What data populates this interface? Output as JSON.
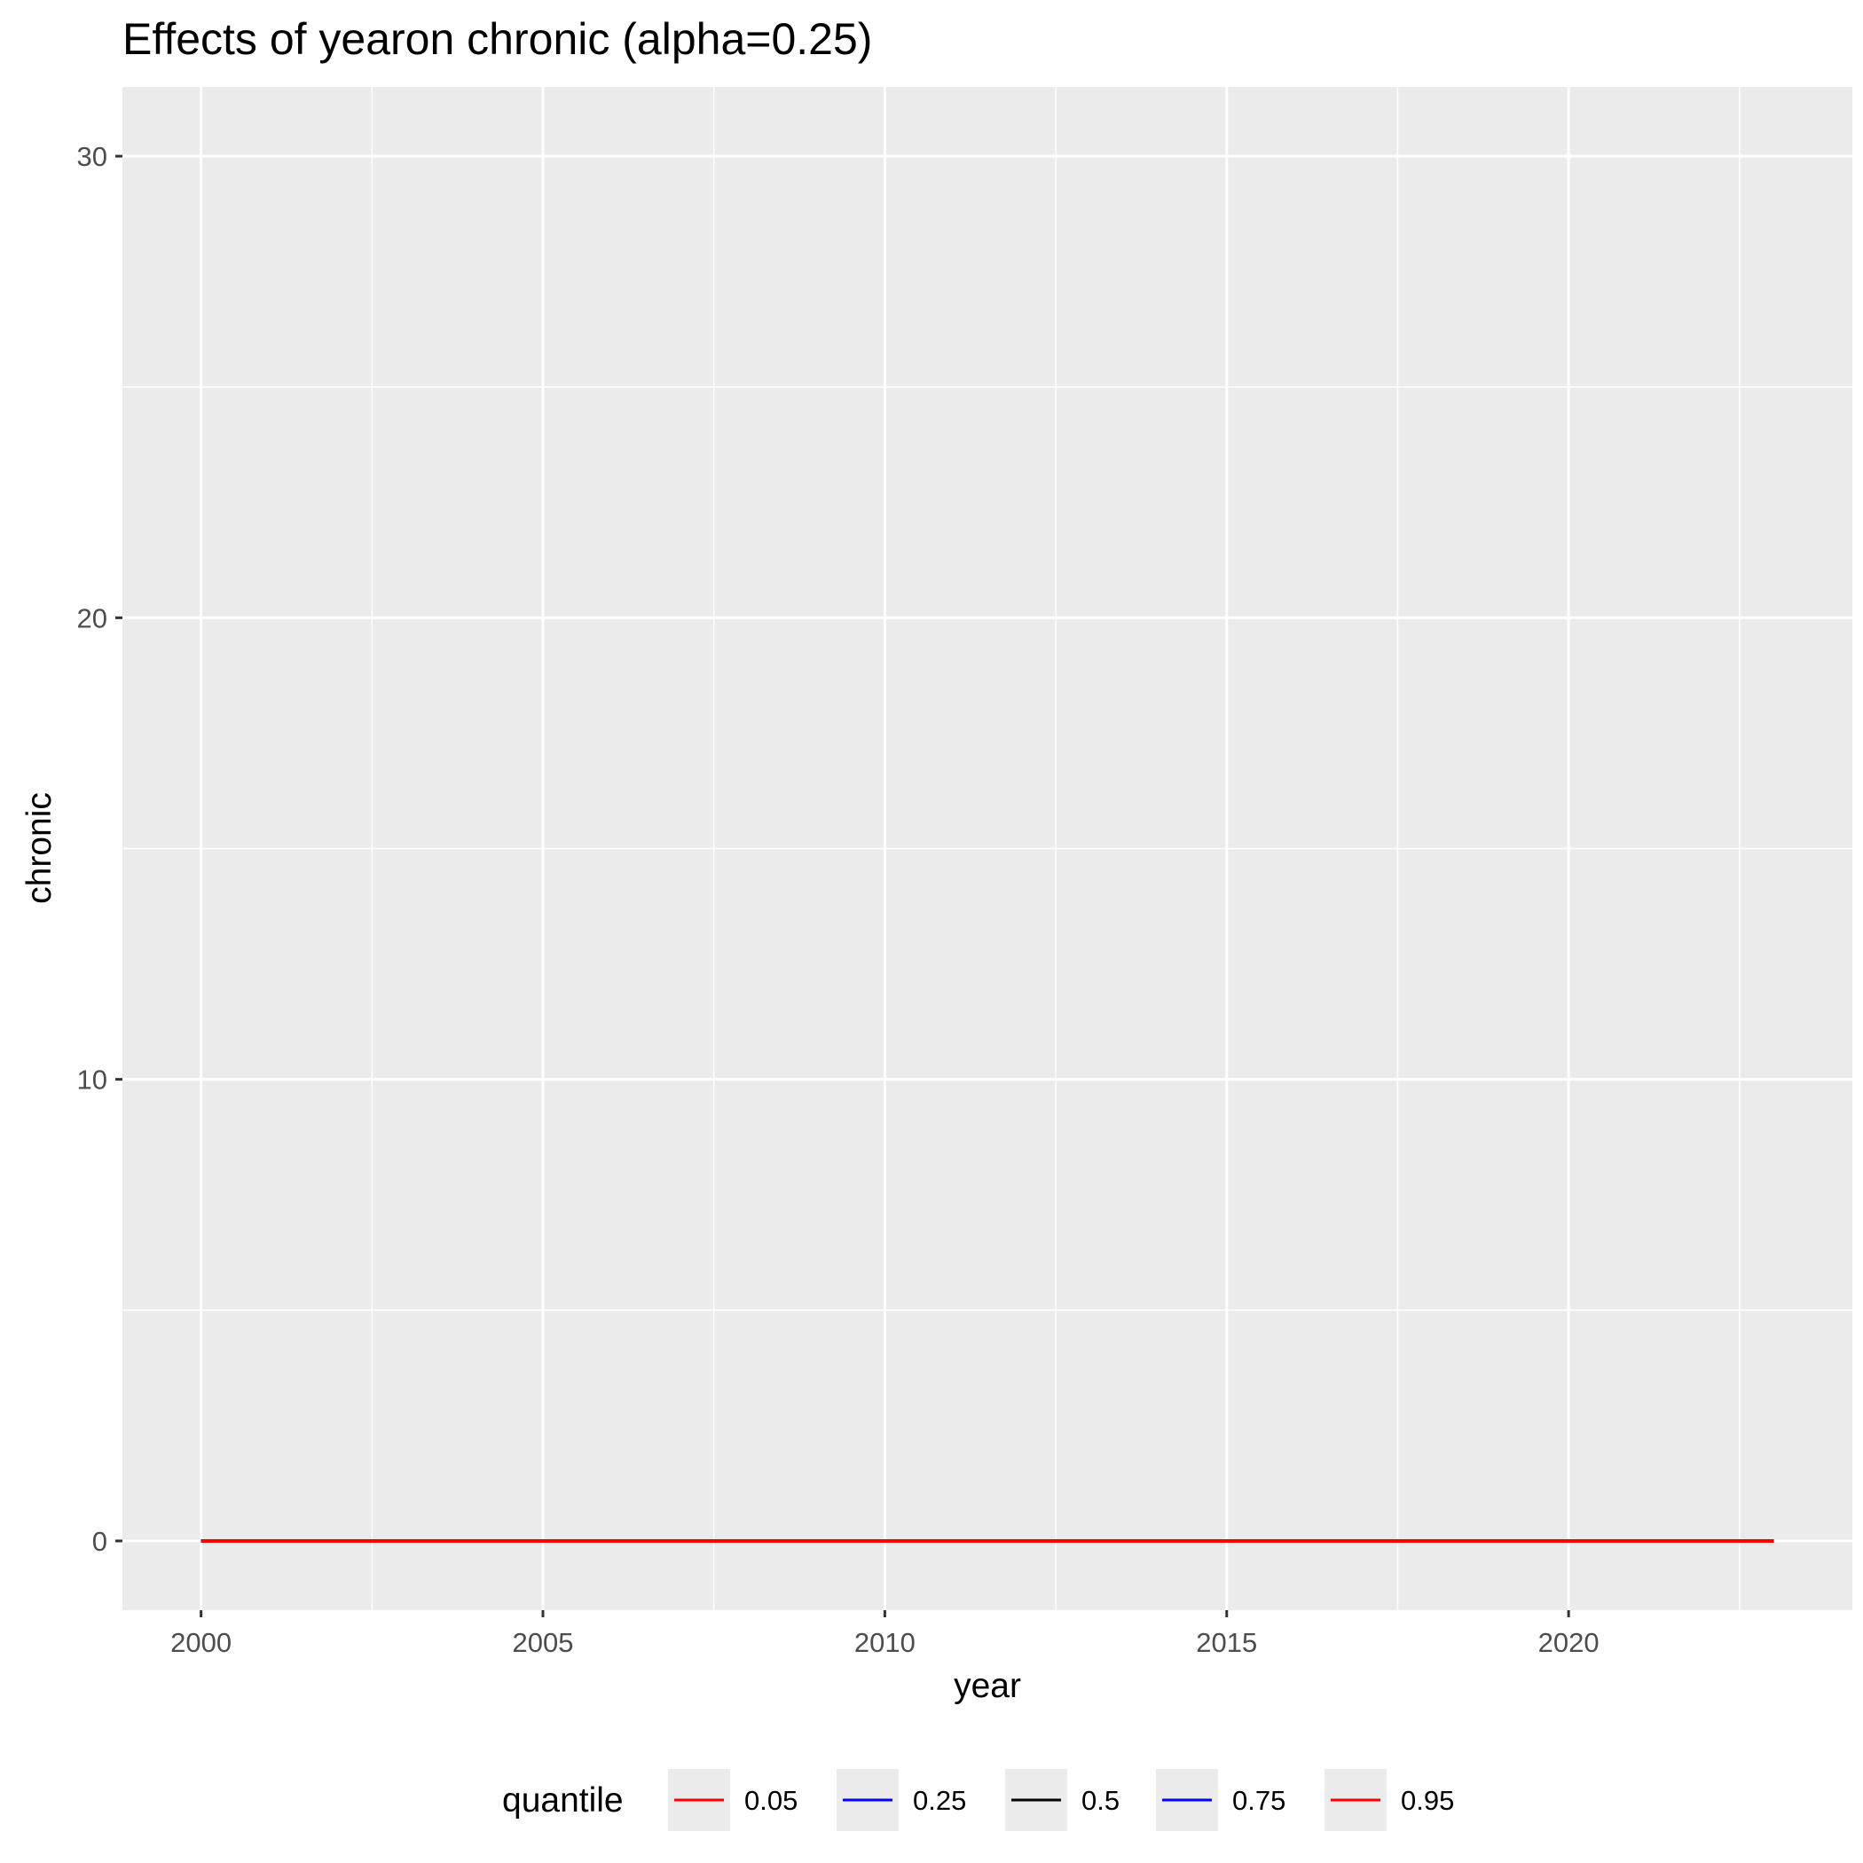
{
  "chart_data": {
    "type": "line",
    "title": "Effects of yearon chronic (alpha=0.25)",
    "xlabel": "year",
    "ylabel": "chronic",
    "xlim": [
      1998.85,
      2024.15
    ],
    "ylim": [
      -1.5,
      31.5
    ],
    "x_ticks": [
      2000,
      2005,
      2010,
      2015,
      2020
    ],
    "x_tick_labels": [
      "2000",
      "2005",
      "2010",
      "2015",
      "2020"
    ],
    "y_ticks": [
      0,
      10,
      20,
      30
    ],
    "y_tick_labels": [
      "0",
      "10",
      "20",
      "30"
    ],
    "grid": true,
    "legend_position": "bottom",
    "legend_title": "quantile",
    "x": [
      2000,
      2023
    ],
    "series": [
      {
        "name": "0.05",
        "color": "#ff0000",
        "values": [
          0,
          0
        ]
      },
      {
        "name": "0.25",
        "color": "#0000ff",
        "values": [
          0,
          0
        ]
      },
      {
        "name": "0.5",
        "color": "#000000",
        "values": [
          0,
          0
        ]
      },
      {
        "name": "0.75",
        "color": "#0000ff",
        "values": [
          0,
          0
        ]
      },
      {
        "name": "0.95",
        "color": "#ff0000",
        "values": [
          0,
          0
        ]
      }
    ]
  }
}
